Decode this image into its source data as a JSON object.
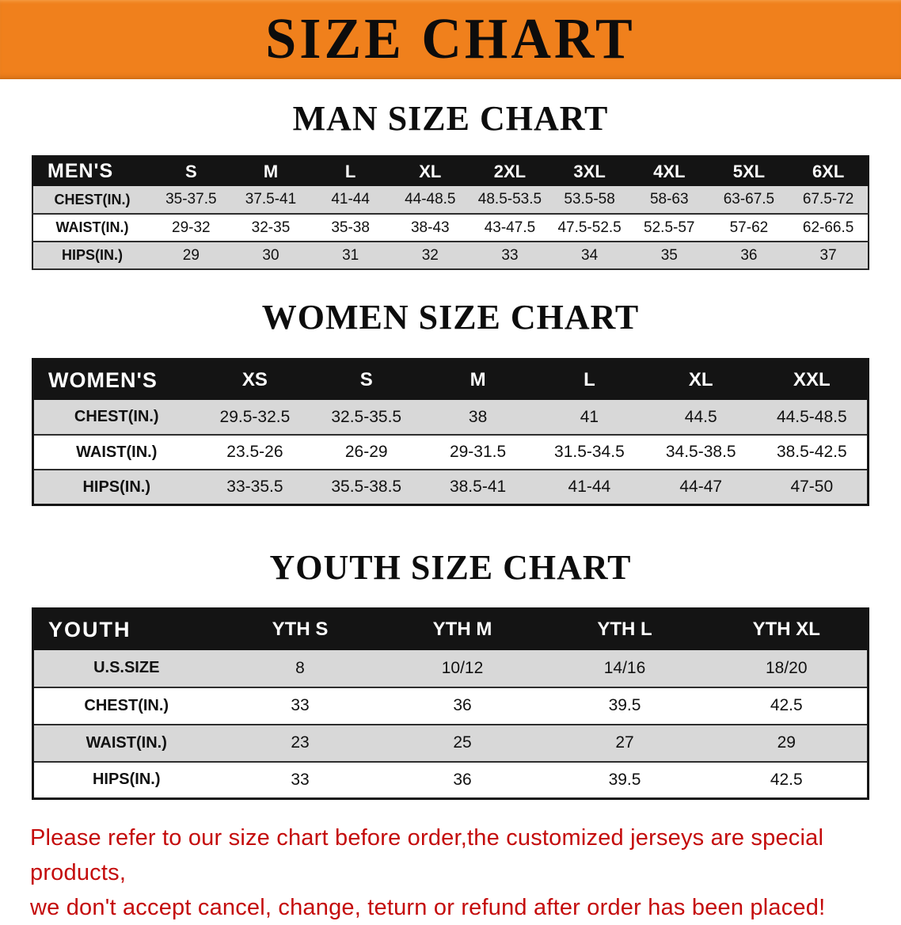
{
  "banner": {
    "title": "SIZE CHART"
  },
  "colors": {
    "banner_bg": "#f0801c",
    "header_bg": "#141414",
    "row_alt": "#d8d8d8",
    "footer_text": "#c40b0b"
  },
  "men": {
    "heading": "MAN SIZE CHART",
    "table": {
      "header": [
        "MEN'S",
        "S",
        "M",
        "L",
        "XL",
        "2XL",
        "3XL",
        "4XL",
        "5XL",
        "6XL"
      ],
      "rows": [
        {
          "label": "CHEST(IN.)",
          "values": [
            "35-37.5",
            "37.5-41",
            "41-44",
            "44-48.5",
            "48.5-53.5",
            "53.5-58",
            "58-63",
            "63-67.5",
            "67.5-72"
          ]
        },
        {
          "label": "WAIST(IN.)",
          "values": [
            "29-32",
            "32-35",
            "35-38",
            "38-43",
            "43-47.5",
            "47.5-52.5",
            "52.5-57",
            "57-62",
            "62-66.5"
          ]
        },
        {
          "label": "HIPS(IN.)",
          "values": [
            "29",
            "30",
            "31",
            "32",
            "33",
            "34",
            "35",
            "36",
            "37"
          ]
        }
      ]
    }
  },
  "women": {
    "heading": "WOMEN SIZE CHART",
    "table": {
      "header": [
        "WOMEN'S",
        "XS",
        "S",
        "M",
        "L",
        "XL",
        "XXL"
      ],
      "rows": [
        {
          "label": "CHEST(IN.)",
          "values": [
            "29.5-32.5",
            "32.5-35.5",
            "38",
            "41",
            "44.5",
            "44.5-48.5"
          ]
        },
        {
          "label": "WAIST(IN.)",
          "values": [
            "23.5-26",
            "26-29",
            "29-31.5",
            "31.5-34.5",
            "34.5-38.5",
            "38.5-42.5"
          ]
        },
        {
          "label": "HIPS(IN.)",
          "values": [
            "33-35.5",
            "35.5-38.5",
            "38.5-41",
            "41-44",
            "44-47",
            "47-50"
          ]
        }
      ]
    }
  },
  "youth": {
    "heading": "YOUTH SIZE CHART",
    "table": {
      "header": [
        "YOUTH",
        "YTH S",
        "YTH M",
        "YTH L",
        "YTH XL"
      ],
      "rows": [
        {
          "label": "U.S.SIZE",
          "values": [
            "8",
            "10/12",
            "14/16",
            "18/20"
          ]
        },
        {
          "label": "CHEST(IN.)",
          "values": [
            "33",
            "36",
            "39.5",
            "42.5"
          ]
        },
        {
          "label": "WAIST(IN.)",
          "values": [
            "23",
            "25",
            "27",
            "29"
          ]
        },
        {
          "label": "HIPS(IN.)",
          "values": [
            "33",
            "36",
            "39.5",
            "42.5"
          ]
        }
      ]
    }
  },
  "footer": {
    "line1": "Please refer to our size chart before order,the customized jerseys are special products,",
    "line2": "we don't accept cancel, change, teturn or refund after order has been placed!"
  }
}
